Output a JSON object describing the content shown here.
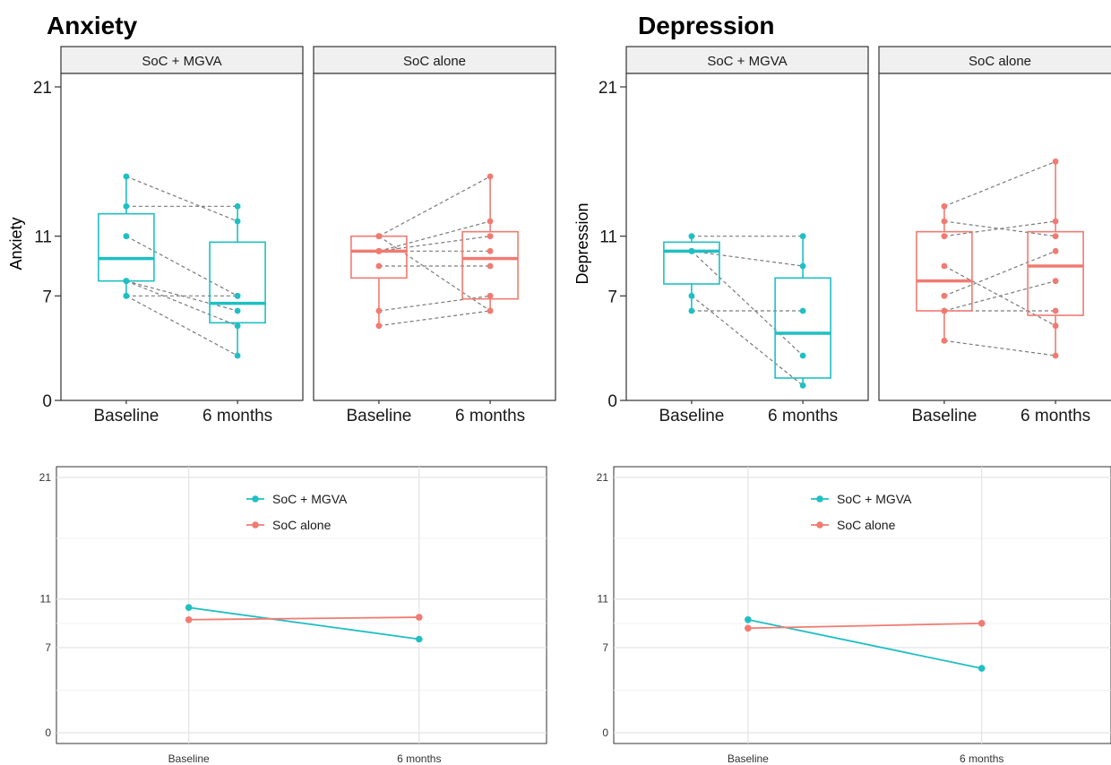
{
  "colors": {
    "soc_mgva": "#1fbfc3",
    "soc_alone": "#f07b72",
    "paired_line": "#7a7a7a",
    "strip_fill": "#f0f0f0"
  },
  "chart_data": [
    {
      "type": "box-paired",
      "title": "Anxiety",
      "ylabel": "Anxiety",
      "ylim": [
        0,
        21
      ],
      "yticks": [
        "0",
        "7",
        "11",
        "21"
      ],
      "categories": [
        "Baseline",
        "6 months"
      ],
      "panels": [
        {
          "label": "SoC + MGVA",
          "color_key": "soc_mgva",
          "boxes": [
            {
              "q1": 8,
              "median": 9.5,
              "q3": 12.5,
              "low": 7,
              "high": 15
            },
            {
              "q1": 5.2,
              "median": 6.5,
              "q3": 10.6,
              "low": 3,
              "high": 13
            }
          ],
          "pairs": [
            [
              15,
              12
            ],
            [
              13,
              13
            ],
            [
              11,
              7
            ],
            [
              8,
              5
            ],
            [
              7,
              7
            ],
            [
              8,
              6
            ],
            [
              7,
              3
            ]
          ]
        },
        {
          "label": "SoC alone",
          "color_key": "soc_alone",
          "boxes": [
            {
              "q1": 8.2,
              "median": 10,
              "q3": 11,
              "low": 5,
              "high": 11
            },
            {
              "q1": 6.8,
              "median": 9.5,
              "q3": 11.3,
              "low": 6,
              "high": 15
            }
          ],
          "pairs": [
            [
              11,
              15
            ],
            [
              10,
              12
            ],
            [
              10,
              11
            ],
            [
              10,
              10
            ],
            [
              9,
              9
            ],
            [
              6,
              7
            ],
            [
              5,
              6
            ],
            [
              11,
              6
            ]
          ]
        }
      ]
    },
    {
      "type": "box-paired",
      "title": "Depression",
      "ylabel": "Depression",
      "ylim": [
        0,
        21
      ],
      "yticks": [
        "0",
        "7",
        "11",
        "21"
      ],
      "categories": [
        "Baseline",
        "6 months"
      ],
      "panels": [
        {
          "label": "SoC + MGVA",
          "color_key": "soc_mgva",
          "boxes": [
            {
              "q1": 7.8,
              "median": 10,
              "q3": 10.6,
              "low": 6,
              "high": 11
            },
            {
              "q1": 1.5,
              "median": 4.5,
              "q3": 8.2,
              "low": 1,
              "high": 11
            }
          ],
          "pairs": [
            [
              11,
              11
            ],
            [
              10,
              9
            ],
            [
              10,
              3
            ],
            [
              7,
              1
            ],
            [
              6,
              6
            ]
          ]
        },
        {
          "label": "SoC alone",
          "color_key": "soc_alone",
          "boxes": [
            {
              "q1": 6,
              "median": 8,
              "q3": 11.3,
              "low": 4,
              "high": 13
            },
            {
              "q1": 5.7,
              "median": 9,
              "q3": 11.3,
              "low": 3,
              "high": 16
            }
          ],
          "pairs": [
            [
              13,
              16
            ],
            [
              12,
              11
            ],
            [
              11,
              12
            ],
            [
              9,
              5
            ],
            [
              7,
              10
            ],
            [
              6,
              8
            ],
            [
              4,
              3
            ],
            [
              6,
              6
            ]
          ]
        }
      ]
    },
    {
      "type": "line",
      "ylim": [
        0,
        21
      ],
      "yticks": [
        "0",
        "7",
        "11",
        "21"
      ],
      "x": [
        "Baseline",
        "6 months"
      ],
      "legend_position": "top",
      "series": [
        {
          "name": "SoC + MGVA",
          "color_key": "soc_mgva",
          "values": [
            10.3,
            7.7
          ]
        },
        {
          "name": "SoC alone",
          "color_key": "soc_alone",
          "values": [
            9.3,
            9.5
          ]
        }
      ]
    },
    {
      "type": "line",
      "ylim": [
        0,
        21
      ],
      "yticks": [
        "0",
        "7",
        "11",
        "21"
      ],
      "x": [
        "Baseline",
        "6 months"
      ],
      "legend_position": "top",
      "series": [
        {
          "name": "SoC + MGVA",
          "color_key": "soc_mgva",
          "values": [
            9.3,
            5.3
          ]
        },
        {
          "name": "SoC alone",
          "color_key": "soc_alone",
          "values": [
            8.6,
            9.0
          ]
        }
      ]
    }
  ]
}
